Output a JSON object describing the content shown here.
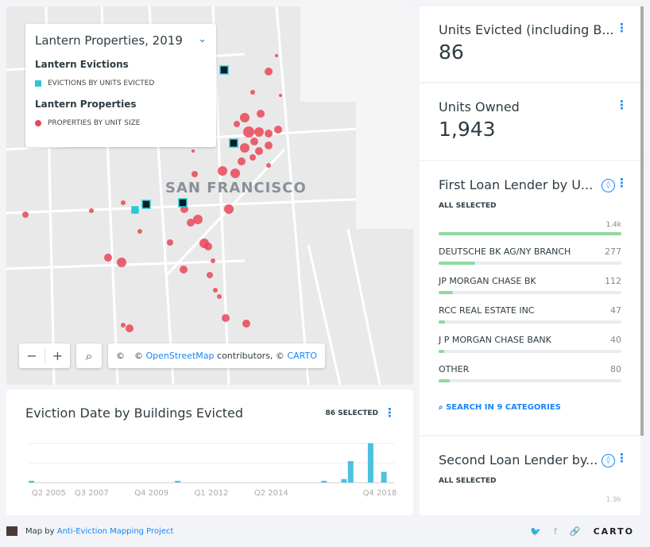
{
  "map": {
    "city_label": "SAN FRANCISCO",
    "legend": {
      "title": "Lantern Properties, 2019",
      "layer1": "Lantern Evictions",
      "layer1_item": "EVICTIONS BY UNITS EVICTED",
      "layer2": "Lantern Properties",
      "layer2_item": "PROPERTIES BY UNIT SIZE"
    },
    "zoom_out": "−",
    "zoom_in": "+",
    "search": "⌕",
    "copyright": "©",
    "attribution_prefix": "©",
    "osm": "OpenStreetMap",
    "attribution_mid": "contributors, ©",
    "carto": "CARTO",
    "colors": {
      "eviction": "#2ec7d6",
      "property": "#e94757"
    }
  },
  "histogram": {
    "title": "Eviction Date by Buildings Evicted",
    "selected": "86 SELECTED",
    "menu": "⋮"
  },
  "chart_data": {
    "type": "bar",
    "title": "Eviction Date by Buildings Evicted",
    "x_ticks": [
      "Q2 2005",
      "Q3 2007",
      "Q4 2009",
      "Q1 2012",
      "Q2 2014",
      "Q4 2018"
    ],
    "bars": [
      {
        "quarter": 0,
        "value": 1
      },
      {
        "quarter": 22,
        "value": 1
      },
      {
        "quarter": 44,
        "value": 1
      },
      {
        "quarter": 47,
        "value": 2
      },
      {
        "quarter": 48,
        "value": 12
      },
      {
        "quarter": 51,
        "value": 22
      },
      {
        "quarter": 53,
        "value": 6
      }
    ],
    "x_range": [
      0,
      54
    ],
    "ylim": [
      0,
      22
    ],
    "color": "#4cc1e0"
  },
  "widgets": [
    {
      "title": "Units Evicted (including B...",
      "value": "86",
      "menu": "⋮"
    },
    {
      "title": "Units Owned",
      "value": "1,943",
      "menu": "⋮"
    },
    {
      "title": "First Loan Lender by U...",
      "subtitle": "ALL SELECTED",
      "total": "1.4k",
      "menu": "⋮",
      "categories": [
        {
          "name": "DEUTSCHE BK AG/NY BRANCH",
          "value": "277",
          "frac": 0.2
        },
        {
          "name": "JP MORGAN CHASE BK",
          "value": "112",
          "frac": 0.08
        },
        {
          "name": "RCC REAL ESTATE INC",
          "value": "47",
          "frac": 0.034
        },
        {
          "name": "J P MORGAN CHASE BANK",
          "value": "40",
          "frac": 0.03
        },
        {
          "name": "OTHER",
          "value": "80",
          "frac": 0.06
        }
      ],
      "search": "SEARCH IN 9 CATEGORIES"
    },
    {
      "title": "Second Loan Lender by...",
      "subtitle": "ALL SELECTED",
      "total": "1.9k",
      "menu": "⋮"
    }
  ],
  "footer": {
    "prefix": "Map by",
    "link": "Anti-Eviction Mapping Project",
    "brand": "CARTO"
  }
}
